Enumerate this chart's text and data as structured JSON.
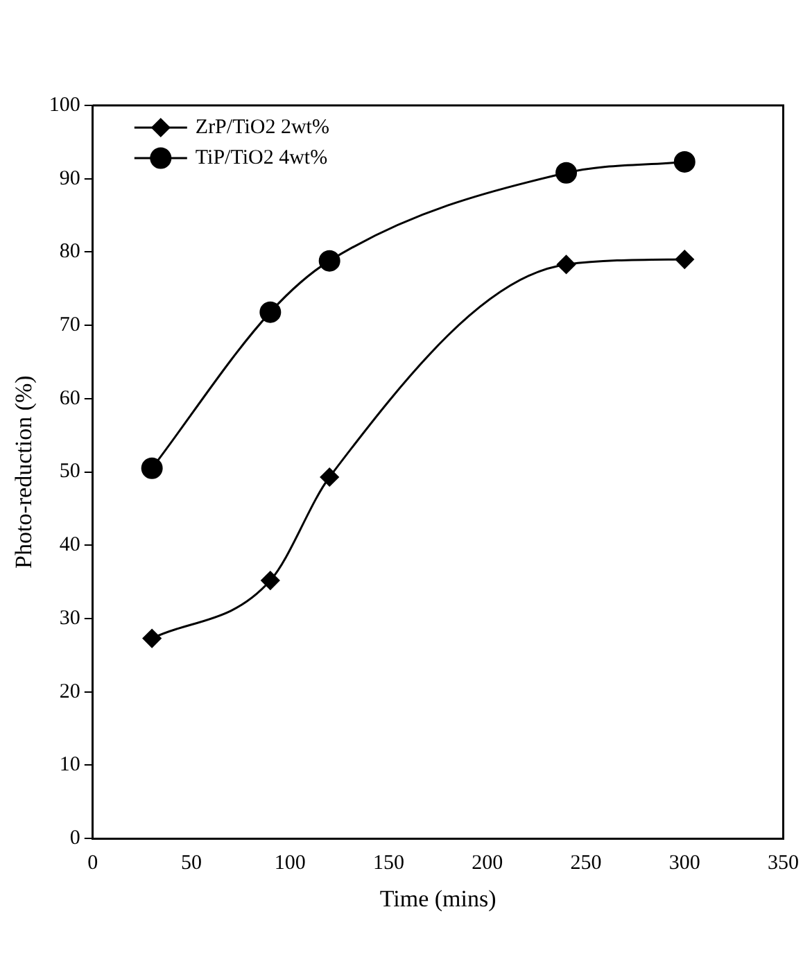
{
  "chart_data": {
    "type": "line",
    "xlabel": "Time (mins)",
    "ylabel": "Photo-reduction (%)",
    "xlim": [
      0,
      350
    ],
    "xticks": [
      0,
      50,
      100,
      150,
      200,
      250,
      300,
      350
    ],
    "ylim": [
      0,
      100
    ],
    "yticks": [
      0,
      10,
      20,
      30,
      40,
      50,
      60,
      70,
      80,
      90,
      100
    ],
    "grid": false,
    "legend": "top left",
    "line_style": "solid",
    "x": [
      30,
      90,
      120,
      240,
      300
    ],
    "series": [
      {
        "name": "ZrP/TiO2 2wt%",
        "color": "#000000",
        "marker": "diamond",
        "values": [
          27.3,
          35.2,
          49.3,
          78.3,
          79.0
        ]
      },
      {
        "name": "TiP/TiO2 4wt%",
        "color": "#000000",
        "marker": "circle",
        "values": [
          50.5,
          71.8,
          78.8,
          90.8,
          92.3
        ]
      }
    ]
  }
}
